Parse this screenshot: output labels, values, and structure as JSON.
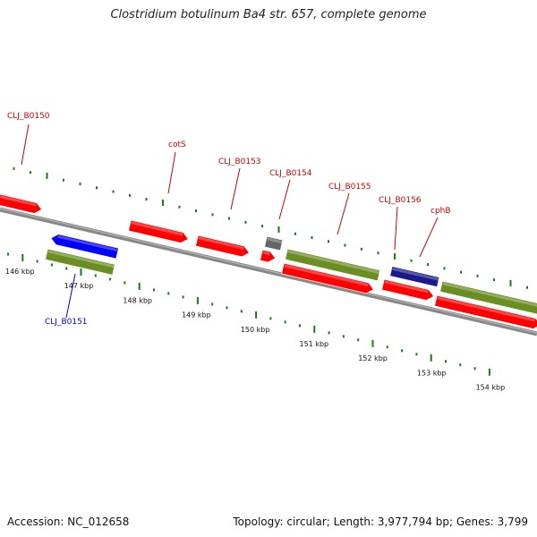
{
  "title": "Clostridium botulinum Ba4 str. 657, complete genome",
  "accession_text": "Accession: NC_012658",
  "summary_text": "Topology: circular; Length: 3,977,794 bp; Genes: 3,799",
  "colors": {
    "backbone": "#888888",
    "cds": "#ff0000",
    "gene_olive": "#6b8e23",
    "blue_cds": "#0000ff",
    "navy_cds": "#1a1a8c",
    "gray_feature": "#666666",
    "tick_green": "#1a7a1a",
    "label_red": "#cc0000",
    "label_blue": "#0000cc"
  },
  "kbp_labels": [
    "146 kbp",
    "147 kbp",
    "148 kbp",
    "149 kbp",
    "150 kbp",
    "151 kbp",
    "152 kbp",
    "153 kbp",
    "154 kbp"
  ],
  "gene_labels": [
    {
      "name": "CLJ_B0150",
      "color": "label_red"
    },
    {
      "name": "cotS",
      "color": "label_red"
    },
    {
      "name": "CLJ_B0153",
      "color": "label_red"
    },
    {
      "name": "CLJ_B0154",
      "color": "label_red"
    },
    {
      "name": "CLJ_B0155",
      "color": "label_red"
    },
    {
      "name": "CLJ_B0156",
      "color": "label_red"
    },
    {
      "name": "cphB",
      "color": "label_red"
    },
    {
      "name": "CLJ_B0151",
      "color": "label_blue"
    }
  ]
}
